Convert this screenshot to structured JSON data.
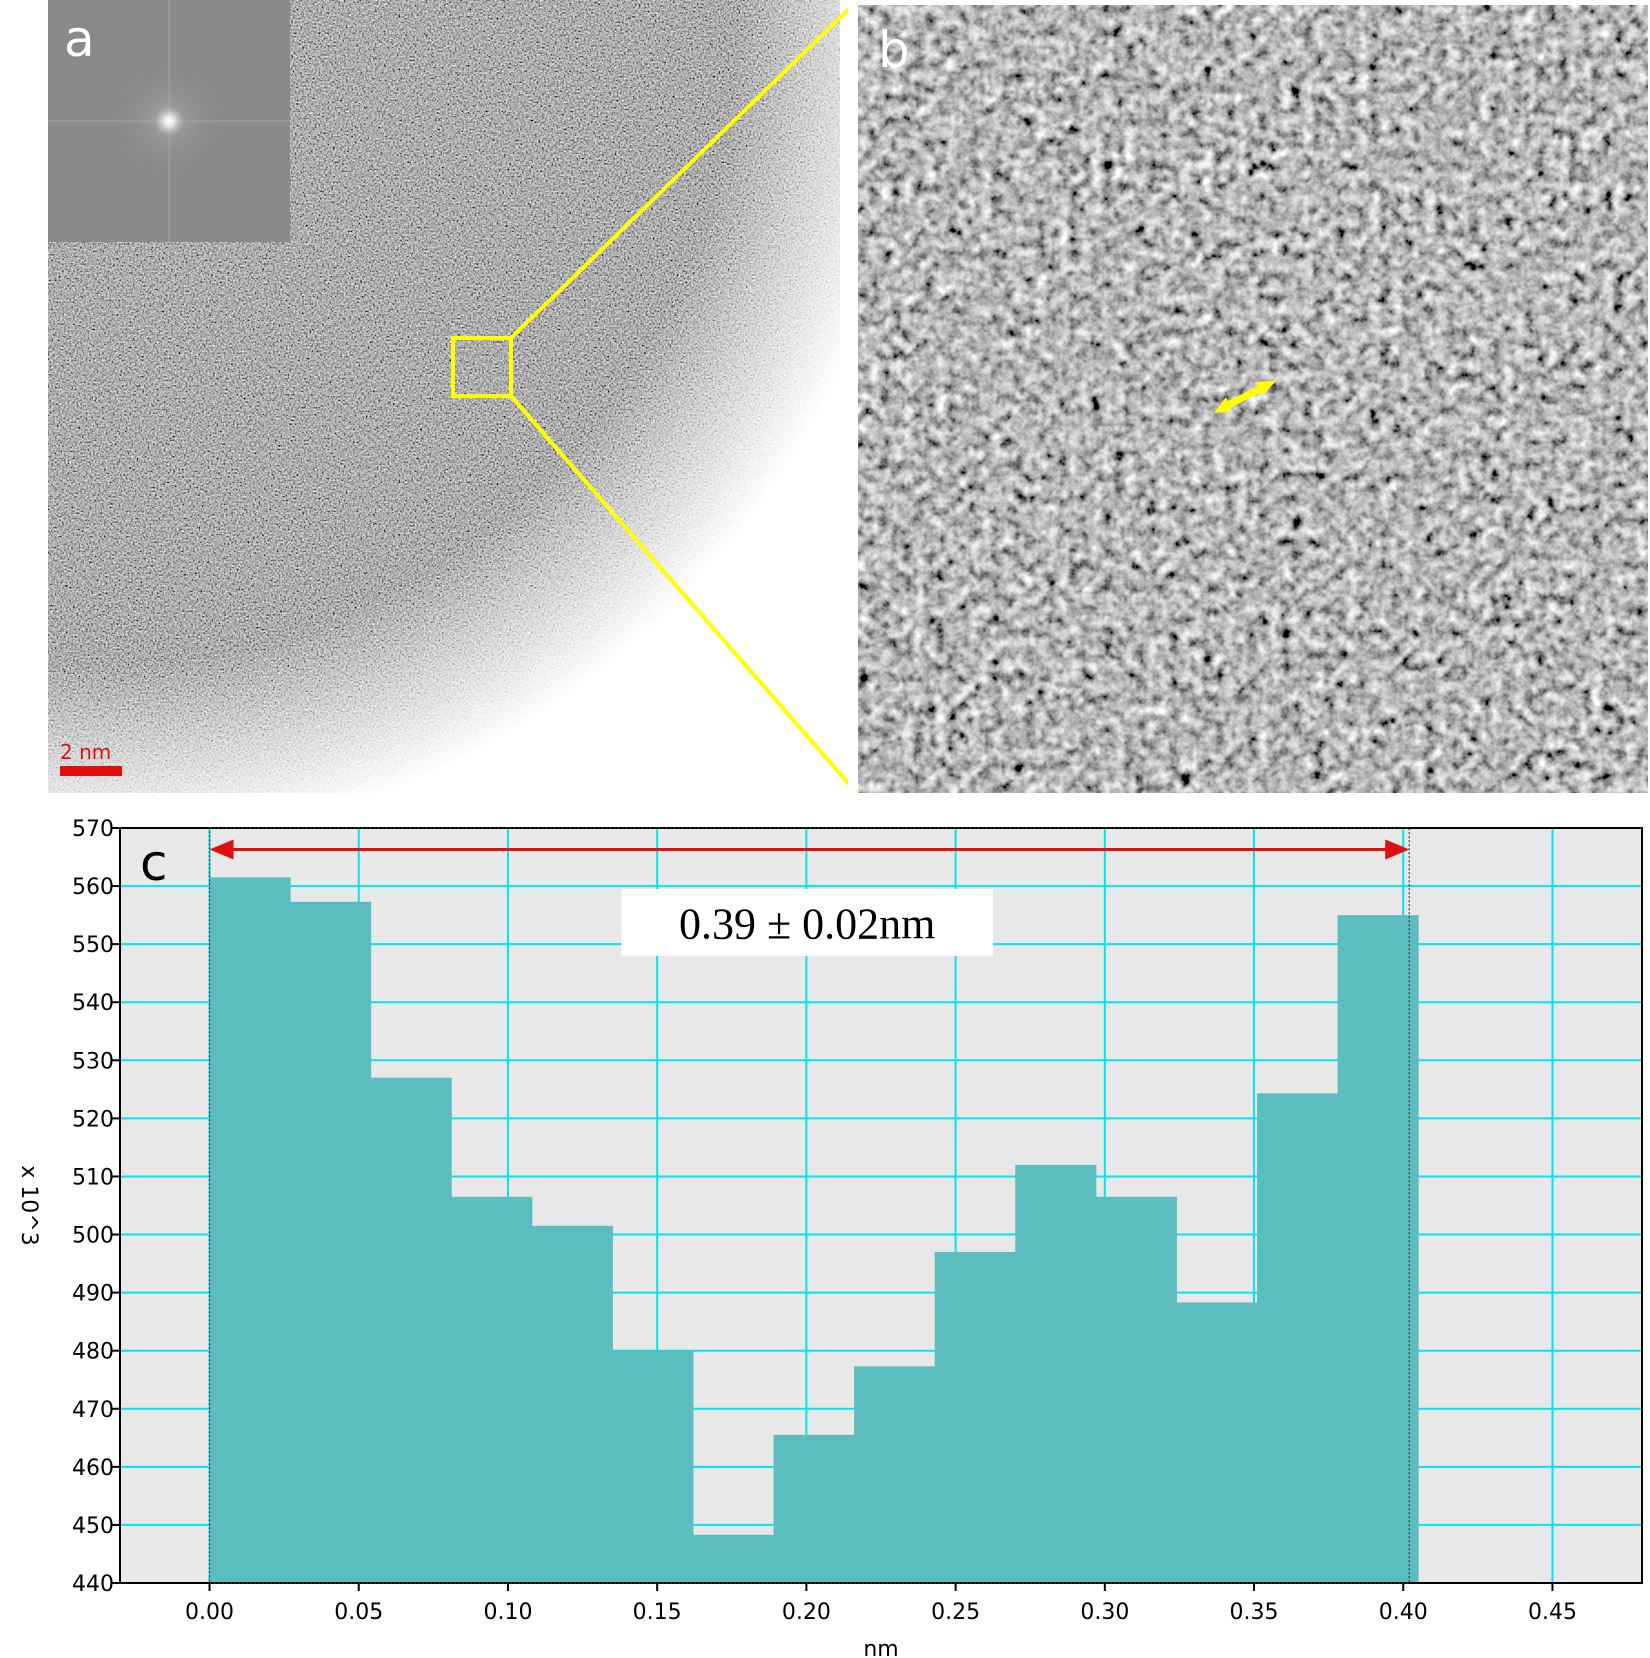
{
  "figure": {
    "panel_a": {
      "letter": "a",
      "scale_bar": {
        "label": "2 nm",
        "color": "#e01010"
      },
      "inset": "fft-diffraction-pattern"
    },
    "panel_b": {
      "letter": "b",
      "arrow_color": "#ffff00"
    },
    "zoom_box_color": "#ffff00"
  },
  "chart_data": {
    "type": "bar",
    "panel_letter": "c",
    "x": [
      0.0,
      0.027,
      0.054,
      0.081,
      0.108,
      0.135,
      0.162,
      0.189,
      0.216,
      0.243,
      0.27,
      0.297,
      0.324,
      0.351,
      0.378
    ],
    "bin_width": 0.027,
    "values": [
      561.5,
      557.3,
      527.0,
      506.5,
      501.5,
      480.0,
      448.3,
      465.5,
      477.3,
      497.0,
      512.0,
      506.5,
      488.3,
      524.3,
      555.0
    ],
    "xlabel": "nm",
    "ylabel": "x 10^3",
    "xlim": [
      -0.03,
      0.48
    ],
    "ylim": [
      440,
      570
    ],
    "x_ticks": [
      "0.00",
      "0.05",
      "0.10",
      "0.15",
      "0.20",
      "0.25",
      "0.30",
      "0.35",
      "0.40",
      "0.45"
    ],
    "y_ticks": [
      "440",
      "450",
      "460",
      "470",
      "480",
      "490",
      "500",
      "510",
      "520",
      "530",
      "540",
      "550",
      "560",
      "570"
    ],
    "grid": true,
    "bar_color": "#5cbdbe",
    "grid_color": "#00e5ee",
    "background": "#e8e8e8",
    "annotation": {
      "text": "0.39 ± 0.02nm",
      "arrow_from": 0.0,
      "arrow_to": 0.402,
      "arrow_color": "#e01010"
    }
  }
}
